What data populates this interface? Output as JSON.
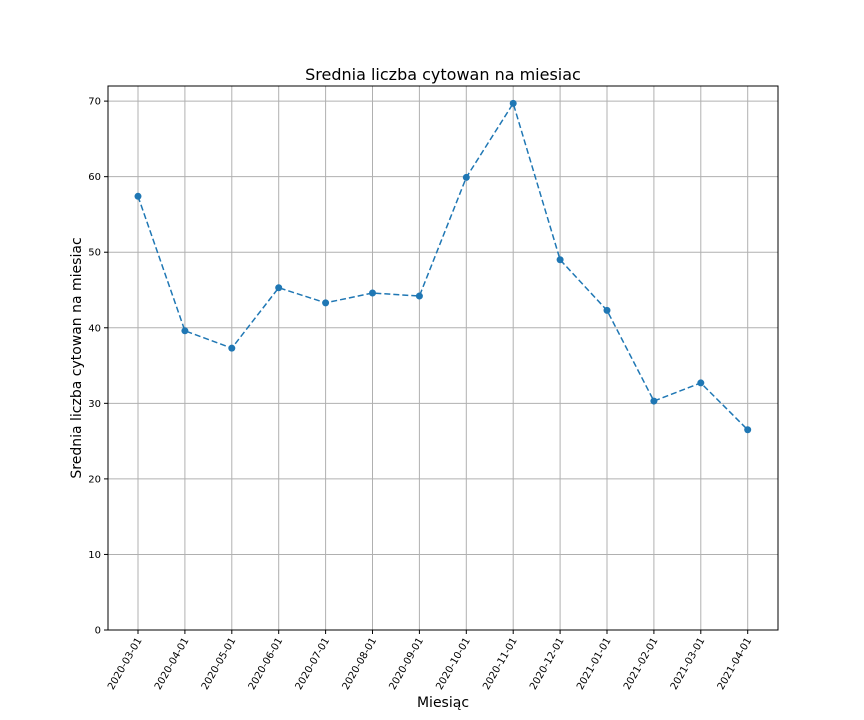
{
  "chart_data": {
    "type": "line",
    "title": "Srednia liczba cytowan na miesiac",
    "xlabel": "Miesiąc",
    "ylabel": "Srednia liczba cytowan na miesiac",
    "categories": [
      "2020-03-01",
      "2020-04-01",
      "2020-05-01",
      "2020-06-01",
      "2020-07-01",
      "2020-08-01",
      "2020-09-01",
      "2020-10-01",
      "2020-11-01",
      "2020-12-01",
      "2021-01-01",
      "2021-02-01",
      "2021-03-01",
      "2021-04-01"
    ],
    "series": [
      {
        "values": [
          57.4,
          39.6,
          37.3,
          45.3,
          43.3,
          44.6,
          44.2,
          59.9,
          69.7,
          49.0,
          42.3,
          30.3,
          32.7,
          26.5
        ],
        "color": "#1f77b4",
        "linestyle": "dashed",
        "marker": "circle"
      }
    ],
    "ylim": [
      0,
      72
    ],
    "yticks": [
      0,
      10,
      20,
      30,
      40,
      50,
      60,
      70
    ],
    "grid": true,
    "legend": "none"
  }
}
